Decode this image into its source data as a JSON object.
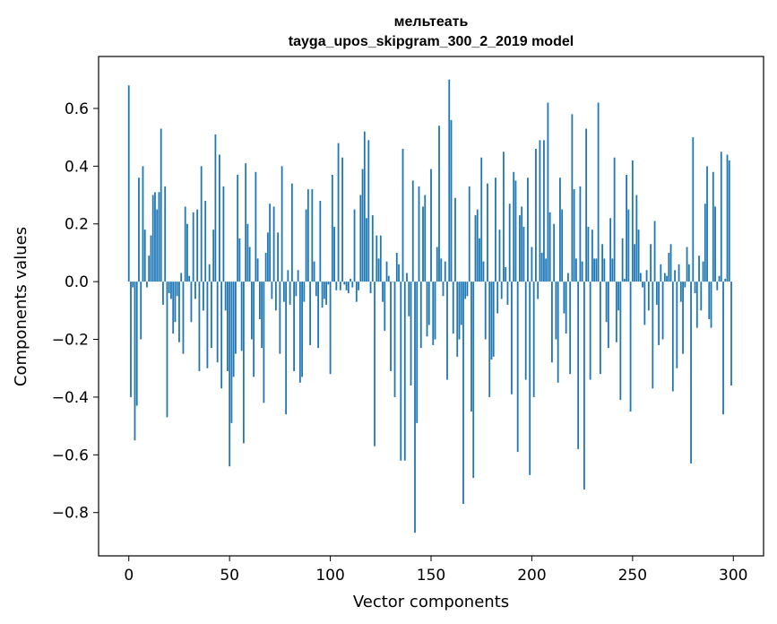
{
  "chart_data": {
    "type": "bar",
    "title_line1": "мельтеать",
    "title_line2": "tayga_upos_skipgram_300_2_2019 model",
    "xlabel": "Vector components",
    "ylabel": "Components values",
    "xlim": [
      -15,
      315
    ],
    "ylim": [
      -0.95,
      0.78
    ],
    "xticks": [
      0,
      50,
      100,
      150,
      200,
      250,
      300
    ],
    "xtick_labels": [
      "0",
      "50",
      "100",
      "150",
      "200",
      "250",
      "300"
    ],
    "yticks": [
      -0.8,
      -0.6,
      -0.4,
      -0.2,
      0.0,
      0.2,
      0.4,
      0.6
    ],
    "ytick_labels": [
      "−0.8",
      "−0.6",
      "−0.4",
      "−0.2",
      "0.0",
      "0.2",
      "0.4",
      "0.6"
    ],
    "color": "#1f77b4",
    "x_start": 0,
    "values": [
      0.68,
      -0.4,
      -0.02,
      -0.55,
      -0.43,
      0.36,
      -0.2,
      0.4,
      0.18,
      -0.02,
      0.09,
      0.16,
      0.3,
      0.31,
      0.25,
      0.31,
      0.53,
      -0.08,
      0.33,
      -0.47,
      -0.04,
      -0.06,
      -0.18,
      -0.14,
      -0.05,
      -0.21,
      0.03,
      -0.25,
      0.26,
      0.2,
      0.02,
      -0.14,
      0.24,
      -0.06,
      0.25,
      -0.31,
      0.4,
      -0.1,
      0.28,
      -0.3,
      0.06,
      -0.23,
      0.18,
      0.51,
      -0.28,
      0.44,
      -0.37,
      0.33,
      -0.1,
      -0.31,
      -0.64,
      -0.49,
      -0.33,
      -0.25,
      0.37,
      0.15,
      -0.24,
      -0.56,
      0.41,
      0.2,
      0.12,
      -0.2,
      -0.33,
      0.38,
      0.08,
      -0.13,
      -0.23,
      -0.42,
      0.1,
      0.17,
      0.27,
      -0.06,
      0.26,
      -0.1,
      0.17,
      -0.25,
      0.4,
      -0.07,
      -0.46,
      0.04,
      -0.08,
      0.34,
      -0.31,
      -0.05,
      0.04,
      -0.35,
      -0.33,
      -0.07,
      0.25,
      0.32,
      -0.22,
      0.32,
      0.07,
      -0.05,
      -0.23,
      0.28,
      -0.09,
      -0.06,
      -0.08,
      -0.01,
      -0.32,
      0.37,
      0.19,
      -0.03,
      0.48,
      -0.03,
      0.43,
      -0.01,
      -0.03,
      -0.04,
      0.01,
      -0.02,
      0.25,
      -0.07,
      -0.03,
      0.3,
      0.39,
      0.52,
      0.22,
      0.49,
      -0.04,
      0.23,
      -0.57,
      0.16,
      0.08,
      0.16,
      -0.07,
      -0.17,
      0.07,
      0.02,
      -0.31,
      0.0,
      -0.4,
      0.1,
      0.06,
      -0.62,
      0.46,
      -0.62,
      0.03,
      -0.12,
      -0.36,
      0.35,
      -0.87,
      -0.49,
      0.33,
      -0.23,
      0.26,
      0.3,
      -0.19,
      -0.15,
      0.39,
      -0.22,
      -0.2,
      0.12,
      0.54,
      0.08,
      -0.05,
      0.07,
      -0.34,
      0.7,
      0.56,
      -0.18,
      0.29,
      -0.26,
      -0.2,
      -0.15,
      -0.77,
      -0.06,
      -0.05,
      0.33,
      -0.45,
      -0.68,
      0.23,
      0.25,
      0.15,
      0.43,
      0.07,
      -0.2,
      0.34,
      -0.4,
      -0.27,
      -0.26,
      0.36,
      -0.11,
      0.18,
      -0.06,
      0.45,
      0.05,
      -0.08,
      0.27,
      -0.39,
      0.38,
      0.35,
      -0.59,
      0.23,
      0.26,
      0.19,
      -0.34,
      0.36,
      -0.67,
      0.12,
      -0.4,
      0.46,
      -0.06,
      0.49,
      0.1,
      0.49,
      0.08,
      0.62,
      0.24,
      -0.28,
      0.2,
      -0.2,
      -0.35,
      0.36,
      0.25,
      -0.11,
      -0.18,
      0.03,
      -0.32,
      0.58,
      0.32,
      0.08,
      -0.58,
      0.33,
      0.07,
      -0.72,
      0.53,
      0.19,
      -0.34,
      0.18,
      0.08,
      0.08,
      0.62,
      -0.32,
      0.13,
      0.08,
      -0.14,
      -0.23,
      0.22,
      0.08,
      0.43,
      -0.21,
      -0.1,
      -0.41,
      0.15,
      0.01,
      0.37,
      0.25,
      -0.45,
      0.42,
      0.13,
      0.3,
      0.18,
      0.03,
      -0.02,
      -0.15,
      0.04,
      -0.1,
      0.13,
      -0.37,
      0.21,
      -0.08,
      -0.22,
      0.06,
      -0.2,
      0.03,
      0.02,
      0.1,
      0.13,
      -0.38,
      0.04,
      -0.3,
      0.06,
      -0.07,
      -0.25,
      -0.02,
      0.12,
      0.06,
      -0.63,
      0.5,
      -0.04,
      -0.16,
      0.09,
      -0.1,
      0.07,
      0.27,
      0.4,
      -0.13,
      -0.16,
      0.38,
      0.26,
      -0.03,
      0.02,
      0.45,
      -0.46,
      0.01,
      0.44,
      0.42,
      -0.36
    ]
  }
}
